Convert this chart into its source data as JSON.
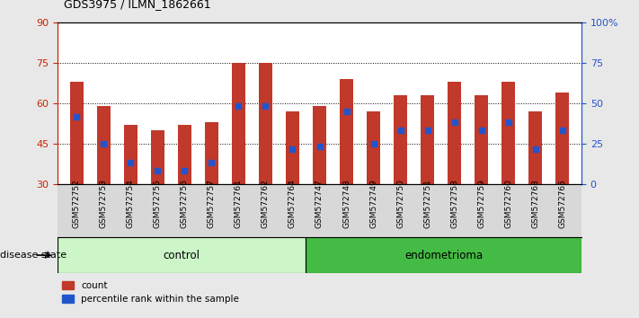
{
  "title": "GDS3975 / ILMN_1862661",
  "samples": [
    "GSM572752",
    "GSM572753",
    "GSM572754",
    "GSM572755",
    "GSM572756",
    "GSM572757",
    "GSM572761",
    "GSM572762",
    "GSM572764",
    "GSM572747",
    "GSM572748",
    "GSM572749",
    "GSM572750",
    "GSM572751",
    "GSM572758",
    "GSM572759",
    "GSM572760",
    "GSM572763",
    "GSM572765"
  ],
  "bar_heights": [
    68,
    59,
    52,
    50,
    52,
    53,
    75,
    75,
    57,
    59,
    69,
    57,
    63,
    63,
    68,
    63,
    68,
    57,
    64
  ],
  "blue_dot_y": [
    55,
    45,
    38,
    35,
    35,
    38,
    59,
    59,
    43,
    44,
    57,
    45,
    50,
    50,
    53,
    50,
    53,
    43,
    50
  ],
  "control_count": 9,
  "y_min": 30,
  "y_max": 90,
  "y_ticks_left": [
    30,
    45,
    60,
    75,
    90
  ],
  "y_ticks_right": [
    0,
    25,
    50,
    75,
    100
  ],
  "bar_color": "#c0392b",
  "dot_color": "#2255cc",
  "bar_width": 0.5,
  "control_color": "#ccf5c8",
  "endometrioma_color": "#44bb44",
  "fig_bg": "#e8e8e8",
  "plot_bg": "#ffffff"
}
